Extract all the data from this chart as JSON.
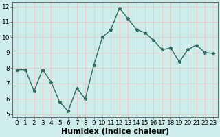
{
  "x": [
    0,
    1,
    2,
    3,
    4,
    5,
    6,
    7,
    8,
    9,
    10,
    11,
    12,
    13,
    14,
    15,
    16,
    17,
    18,
    19,
    20,
    21,
    22,
    23
  ],
  "y": [
    7.9,
    7.9,
    6.5,
    7.9,
    7.1,
    5.8,
    5.2,
    6.7,
    6.0,
    8.2,
    10.0,
    10.5,
    11.9,
    11.2,
    10.5,
    10.3,
    9.8,
    9.2,
    9.3,
    8.4,
    9.2,
    9.5,
    9.0,
    8.95
  ],
  "xlabel": "Humidex (Indice chaleur)",
  "ylim": [
    4.8,
    12.3
  ],
  "xlim": [
    -0.5,
    23.5
  ],
  "yticks": [
    5,
    6,
    7,
    8,
    9,
    10,
    11,
    12
  ],
  "xticks": [
    0,
    1,
    2,
    3,
    4,
    5,
    6,
    7,
    8,
    9,
    10,
    11,
    12,
    13,
    14,
    15,
    16,
    17,
    18,
    19,
    20,
    21,
    22,
    23
  ],
  "line_color": "#2e6b5e",
  "marker": "*",
  "marker_size": 3.5,
  "bg_color": "#ceecea",
  "grid_color": "#e8c8c8",
  "axes_bg": "#ceecea",
  "xlabel_fontsize": 8,
  "tick_fontsize": 6.5,
  "linewidth": 1.0
}
